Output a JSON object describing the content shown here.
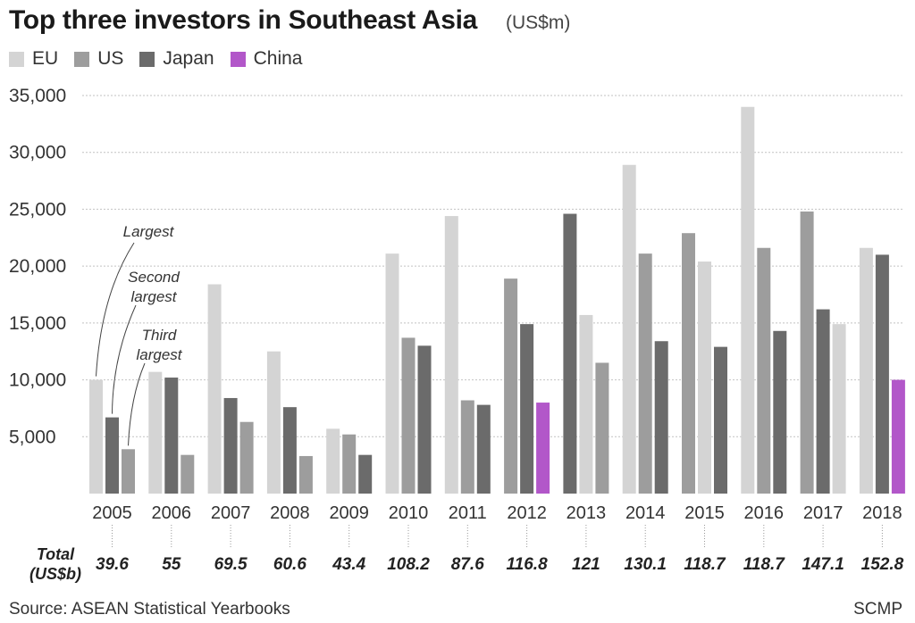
{
  "chart_data": {
    "type": "bar",
    "title": "Top three investors in Southeast Asia",
    "subtitle": "(US$m)",
    "categories": [
      "2005",
      "2006",
      "2007",
      "2008",
      "2009",
      "2010",
      "2011",
      "2012",
      "2013",
      "2014",
      "2015",
      "2016",
      "2017",
      "2018"
    ],
    "series_names": [
      "EU",
      "US",
      "Japan",
      "China"
    ],
    "colors": {
      "EU": "#d4d4d4",
      "US": "#9d9d9d",
      "Japan": "#6b6b6b",
      "China": "#b257c9"
    },
    "bars": [
      [
        [
          "EU",
          10000
        ],
        [
          "Japan",
          6700
        ],
        [
          "US",
          3900
        ]
      ],
      [
        [
          "EU",
          10700
        ],
        [
          "Japan",
          10200
        ],
        [
          "US",
          3400
        ]
      ],
      [
        [
          "EU",
          18400
        ],
        [
          "Japan",
          8400
        ],
        [
          "US",
          6300
        ]
      ],
      [
        [
          "EU",
          12500
        ],
        [
          "Japan",
          7600
        ],
        [
          "US",
          3300
        ]
      ],
      [
        [
          "EU",
          5700
        ],
        [
          "US",
          5200
        ],
        [
          "Japan",
          3400
        ]
      ],
      [
        [
          "EU",
          21100
        ],
        [
          "US",
          13700
        ],
        [
          "Japan",
          13000
        ]
      ],
      [
        [
          "EU",
          24400
        ],
        [
          "US",
          8200
        ],
        [
          "Japan",
          7800
        ]
      ],
      [
        [
          "US",
          18900
        ],
        [
          "Japan",
          14900
        ],
        [
          "China",
          8000
        ]
      ],
      [
        [
          "Japan",
          24600
        ],
        [
          "EU",
          15700
        ],
        [
          "US",
          11500
        ]
      ],
      [
        [
          "EU",
          28900
        ],
        [
          "US",
          21100
        ],
        [
          "Japan",
          13400
        ]
      ],
      [
        [
          "US",
          22900
        ],
        [
          "EU",
          20400
        ],
        [
          "Japan",
          12900
        ]
      ],
      [
        [
          "EU",
          34000
        ],
        [
          "US",
          21600
        ],
        [
          "Japan",
          14300
        ]
      ],
      [
        [
          "US",
          24800
        ],
        [
          "Japan",
          16200
        ],
        [
          "EU",
          14900
        ]
      ],
      [
        [
          "EU",
          21600
        ],
        [
          "Japan",
          21000
        ],
        [
          "China",
          10000
        ]
      ]
    ],
    "ylim": [
      0,
      35000
    ],
    "yticks": [
      5000,
      10000,
      15000,
      20000,
      25000,
      30000,
      35000
    ],
    "ytick_labels": [
      "5,000",
      "10,000",
      "15,000",
      "20,000",
      "25,000",
      "30,000",
      "35,000"
    ],
    "totals_label": [
      "Total",
      "(US$b)"
    ],
    "totals": [
      "39.6",
      "55",
      "69.5",
      "60.6",
      "43.4",
      "108.2",
      "87.6",
      "116.8",
      "121",
      "130.1",
      "118.7",
      "118.7",
      "147.1",
      "152.8"
    ],
    "annotations": [
      {
        "lines": [
          "Largest"
        ],
        "category": "2005",
        "rank": 0
      },
      {
        "lines": [
          "Second",
          "largest"
        ],
        "category": "2005",
        "rank": 1
      },
      {
        "lines": [
          "Third",
          "largest"
        ],
        "category": "2005",
        "rank": 2
      }
    ],
    "source": "Source: ASEAN Statistical Yearbooks",
    "credit": "SCMP"
  }
}
